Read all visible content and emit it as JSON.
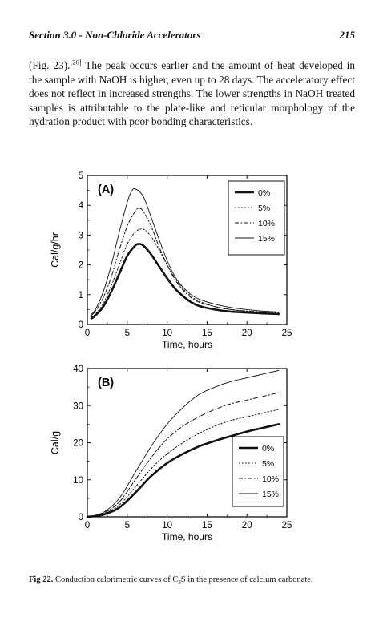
{
  "header": {
    "section": "Section 3.0 - Non-Chloride Accelerators",
    "page_number": "215"
  },
  "paragraph": {
    "prefix": "(Fig. 23).",
    "ref": "[26]",
    "text": " The peak occurs earlier and the amount of heat developed in the sample with NaOH is higher, even up to 28 days. The acceleratory effect does not reflect in increased strengths. The lower strengths in NaOH treated samples is attributable to the plate-like and reticular morphology of the hydration product with poor bonding characteristics."
  },
  "caption": {
    "label": "Fig 22.",
    "text_before": " Conduction calorimetric curves of C",
    "subscript": "3",
    "text_after": "S in the presence of calcium carbonate."
  },
  "chart_data": [
    {
      "type": "line",
      "panel_label": "(A)",
      "xlabel": "Time, hours",
      "ylabel": "Cal/g/hr",
      "xlim": [
        0,
        25
      ],
      "ylim": [
        0,
        5
      ],
      "xticks": [
        0,
        5,
        10,
        15,
        20,
        25
      ],
      "yticks": [
        0,
        1,
        2,
        3,
        4,
        5
      ],
      "legend_position": "top-right",
      "series": [
        {
          "name": "0%",
          "style": "thick-solid",
          "x": [
            0.5,
            1,
            2,
            3,
            4,
            5,
            6,
            6.5,
            7,
            8,
            9,
            10,
            11,
            12,
            13,
            14,
            16,
            18,
            20,
            22,
            24
          ],
          "y": [
            0.2,
            0.3,
            0.6,
            1.1,
            1.7,
            2.3,
            2.65,
            2.7,
            2.65,
            2.35,
            1.95,
            1.55,
            1.2,
            0.95,
            0.75,
            0.62,
            0.5,
            0.43,
            0.4,
            0.37,
            0.35
          ]
        },
        {
          "name": "5%",
          "style": "dotted",
          "x": [
            0.5,
            1,
            2,
            3,
            4,
            5,
            6,
            7,
            8,
            9,
            10,
            11,
            12,
            13,
            14,
            16,
            18,
            20,
            22,
            24
          ],
          "y": [
            0.25,
            0.35,
            0.7,
            1.3,
            2.0,
            2.7,
            3.1,
            3.2,
            2.95,
            2.5,
            2.0,
            1.55,
            1.2,
            0.95,
            0.78,
            0.6,
            0.5,
            0.45,
            0.42,
            0.4
          ]
        },
        {
          "name": "10%",
          "style": "dash-dot",
          "x": [
            0.5,
            1,
            2,
            3,
            4,
            5,
            6,
            6.5,
            7,
            8,
            9,
            10,
            11,
            12,
            13,
            14,
            16,
            18,
            20,
            22,
            24
          ],
          "y": [
            0.3,
            0.45,
            0.9,
            1.6,
            2.5,
            3.3,
            3.8,
            3.9,
            3.8,
            3.3,
            2.6,
            2.0,
            1.5,
            1.15,
            0.9,
            0.75,
            0.6,
            0.5,
            0.45,
            0.42,
            0.4
          ]
        },
        {
          "name": "15%",
          "style": "thin-solid",
          "x": [
            0.5,
            1,
            2,
            3,
            4,
            5,
            5.5,
            6,
            7,
            8,
            9,
            10,
            11,
            12,
            13,
            14,
            16,
            18,
            20,
            22,
            24
          ],
          "y": [
            0.35,
            0.5,
            1.1,
            2.0,
            3.1,
            4.1,
            4.45,
            4.55,
            4.3,
            3.6,
            2.85,
            2.15,
            1.6,
            1.25,
            1.0,
            0.85,
            0.68,
            0.57,
            0.5,
            0.45,
            0.42
          ]
        }
      ]
    },
    {
      "type": "line",
      "panel_label": "(B)",
      "xlabel": "Time, hours",
      "ylabel": "Cal/g",
      "xlim": [
        0,
        25
      ],
      "ylim": [
        0,
        40
      ],
      "xticks": [
        0,
        5,
        10,
        15,
        20,
        25
      ],
      "yticks": [
        0,
        10,
        20,
        30,
        40
      ],
      "legend_position": "bottom-right",
      "series": [
        {
          "name": "0%",
          "style": "thick-solid",
          "x": [
            0,
            2,
            4,
            6,
            8,
            10,
            12,
            14,
            16,
            18,
            20,
            22,
            24
          ],
          "y": [
            0,
            0.6,
            2.5,
            6.5,
            11,
            14.5,
            17,
            19,
            20.5,
            21.8,
            23,
            24,
            25
          ]
        },
        {
          "name": "5%",
          "style": "dotted",
          "x": [
            0,
            2,
            4,
            6,
            8,
            10,
            12,
            14,
            16,
            18,
            20,
            22,
            24
          ],
          "y": [
            0,
            0.8,
            3.2,
            8,
            13,
            17,
            20,
            22.5,
            24.5,
            26,
            27,
            28,
            29
          ]
        },
        {
          "name": "10%",
          "style": "dash-dot",
          "x": [
            0,
            2,
            4,
            6,
            8,
            10,
            12,
            14,
            16,
            18,
            20,
            22,
            24
          ],
          "y": [
            0,
            1,
            4,
            10,
            16,
            21,
            24.5,
            27,
            29,
            30.5,
            31.5,
            32.5,
            33.5
          ]
        },
        {
          "name": "15%",
          "style": "thin-solid",
          "x": [
            0,
            2,
            4,
            6,
            8,
            10,
            12,
            14,
            16,
            18,
            20,
            22,
            24
          ],
          "y": [
            0,
            1.2,
            5,
            12,
            19,
            25,
            29.5,
            33,
            35,
            36.5,
            37.5,
            38.5,
            39.5
          ]
        }
      ]
    }
  ]
}
